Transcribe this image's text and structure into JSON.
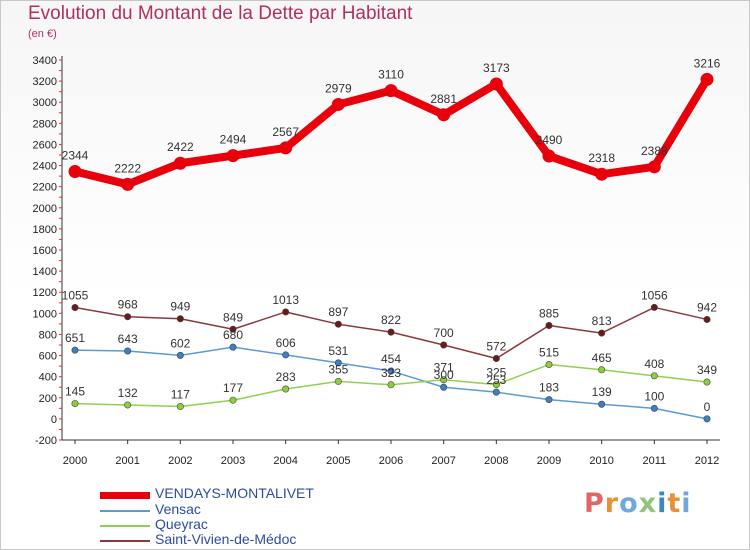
{
  "chart_data": {
    "type": "line",
    "title": "Evolution du Montant de la Dette par Habitant",
    "subtitle": "(en €)",
    "x": [
      "2000",
      "2001",
      "2002",
      "2003",
      "2004",
      "2005",
      "2006",
      "2007",
      "2008",
      "2009",
      "2010",
      "2011",
      "2012"
    ],
    "ylim": [
      -200,
      3400
    ],
    "yticks": [
      -200,
      0,
      200,
      400,
      600,
      800,
      1000,
      1200,
      1400,
      1600,
      1800,
      2000,
      2200,
      2400,
      2600,
      2800,
      3000,
      3200,
      3400
    ],
    "grid": false,
    "legend_position": "bottom",
    "series": [
      {
        "name": "VENDAYS-MONTALIVET",
        "color": "#e8000b",
        "values": [
          2344,
          2222,
          2422,
          2494,
          2567,
          2979,
          3110,
          2881,
          3173,
          2490,
          2318,
          2388,
          3216
        ],
        "labels": [
          "2344",
          "2222",
          "2422",
          "2494",
          "2567",
          "2979",
          "3110",
          "2881",
          "3173",
          "2490",
          "2318",
          "2388",
          "3216"
        ]
      },
      {
        "name": "Vensac",
        "color": "#5b9bd5",
        "values": [
          651,
          643,
          602,
          680,
          606,
          531,
          454,
          300,
          253,
          183,
          139,
          100,
          0
        ],
        "labels": [
          "651",
          "643",
          "602",
          "680",
          "606",
          "531",
          "454",
          "300",
          "253",
          "183",
          "139",
          "100",
          "0"
        ]
      },
      {
        "name": "Queyrac",
        "color": "#92d050",
        "values": [
          145,
          132,
          117,
          177,
          283,
          355,
          323,
          371,
          325,
          515,
          465,
          408,
          349
        ],
        "labels": [
          "145",
          "132",
          "117",
          "177",
          "283",
          "355",
          "323",
          "371",
          "325",
          "515",
          "465",
          "408",
          "349"
        ]
      },
      {
        "name": "Saint-Vivien-de-Médoc",
        "color": "#8b3a3a",
        "values": [
          1055,
          968,
          949,
          849,
          1013,
          897,
          822,
          700,
          572,
          885,
          813,
          1056,
          942
        ],
        "labels": [
          "1055",
          "968",
          "949",
          "849",
          "1013",
          "897",
          "822",
          "700",
          "572",
          "885",
          "813",
          "1056",
          "942"
        ]
      }
    ]
  },
  "brand": {
    "text": "Proxiti",
    "letter_colors": [
      "#e06666",
      "#e69138",
      "#6fa8dc",
      "#93c47d",
      "#3d85c6",
      "#e69138",
      "#6fa8dc"
    ]
  }
}
